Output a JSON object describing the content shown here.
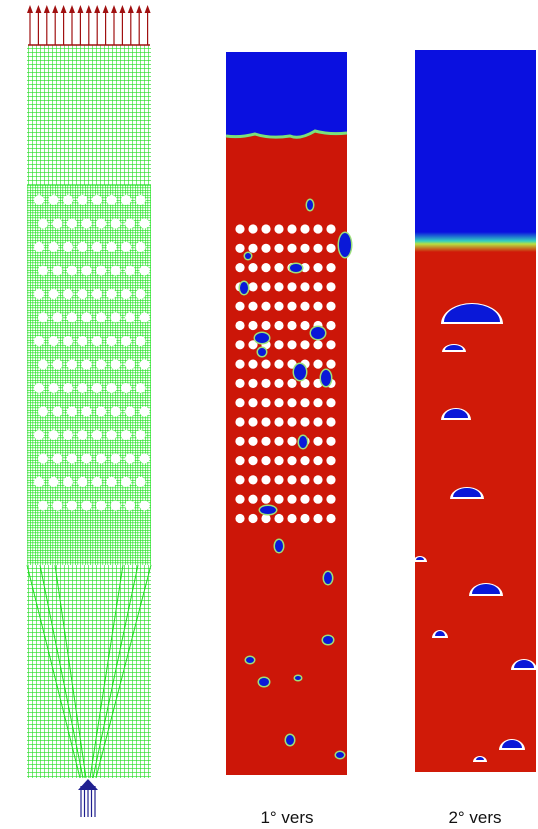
{
  "panels": [
    {
      "label": "1° vers"
    },
    {
      "label": "2° vers"
    }
  ]
}
